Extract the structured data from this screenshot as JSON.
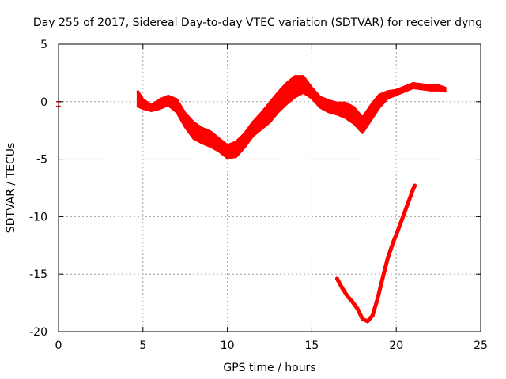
{
  "chart_data": {
    "type": "line",
    "title": "Day 255 of 2017, Sidereal Day-to-day VTEC variation (SDTVAR) for receiver dyng",
    "xlabel": "GPS time / hours",
    "ylabel": "SDTVAR / TECUs",
    "xlim": [
      0,
      25
    ],
    "ylim": [
      -20,
      5
    ],
    "xticks": [
      0,
      5,
      10,
      15,
      20,
      25
    ],
    "yticks": [
      5,
      0,
      -5,
      -10,
      -15,
      -20
    ],
    "xtick_labels": [
      "0",
      "5",
      "10",
      "15",
      "20",
      "25"
    ],
    "ytick_labels": [
      "5",
      "0",
      "-5",
      "-10",
      "-15",
      "-20"
    ],
    "grid": true,
    "color": "#ff0000",
    "series": [
      {
        "name": "band-upper",
        "x": [
          4.7,
          5.0,
          5.5,
          6.0,
          6.5,
          7.0,
          7.5,
          8.0,
          8.5,
          9.0,
          9.5,
          10.0,
          10.5,
          11.0,
          11.5,
          12.0,
          12.5,
          13.0,
          13.5,
          14.0,
          14.5,
          15.0,
          15.5,
          16.0,
          16.5,
          17.0,
          17.5,
          18.0,
          18.5,
          19.0,
          19.5,
          20.0,
          20.5,
          21.0,
          21.5,
          22.0,
          22.5,
          22.9
        ],
        "y": [
          0.9,
          0.2,
          -0.3,
          0.2,
          0.5,
          0.2,
          -1.0,
          -1.8,
          -2.3,
          -2.6,
          -3.2,
          -3.8,
          -3.5,
          -2.8,
          -1.8,
          -1.0,
          -0.1,
          0.8,
          1.6,
          2.2,
          2.2,
          1.2,
          0.4,
          0.1,
          -0.1,
          -0.1,
          -0.5,
          -1.4,
          -0.3,
          0.6,
          0.9,
          1.0,
          1.3,
          1.6,
          1.5,
          1.4,
          1.4,
          1.2
        ]
      },
      {
        "name": "band-lower",
        "x": [
          4.7,
          5.0,
          5.5,
          6.0,
          6.5,
          7.0,
          7.5,
          8.0,
          8.5,
          9.0,
          9.5,
          10.0,
          10.5,
          11.0,
          11.5,
          12.0,
          12.5,
          13.0,
          13.5,
          14.0,
          14.5,
          15.0,
          15.5,
          16.0,
          16.5,
          17.0,
          17.5,
          18.0,
          18.5,
          19.0,
          19.5,
          20.0,
          20.5,
          21.0,
          21.5,
          22.0,
          22.5,
          22.9
        ],
        "y": [
          -0.4,
          -0.6,
          -0.8,
          -0.6,
          -0.3,
          -0.9,
          -2.2,
          -3.2,
          -3.6,
          -3.9,
          -4.3,
          -4.9,
          -4.8,
          -4.0,
          -3.0,
          -2.4,
          -1.8,
          -0.9,
          -0.2,
          0.4,
          0.8,
          0.3,
          -0.5,
          -0.9,
          -1.1,
          -1.4,
          -1.9,
          -2.7,
          -1.6,
          -0.5,
          0.3,
          0.6,
          0.9,
          1.2,
          1.1,
          1.0,
          1.0,
          0.9
        ]
      },
      {
        "name": "dip-segment",
        "x": [
          16.5,
          16.8,
          17.1,
          17.4,
          17.7,
          18.0,
          18.3,
          18.6,
          18.9,
          19.2,
          19.5,
          19.8,
          20.1,
          20.4,
          20.7,
          21.0,
          21.1
        ],
        "y": [
          -15.4,
          -16.2,
          -16.9,
          -17.4,
          -18.0,
          -18.9,
          -19.1,
          -18.6,
          -17.1,
          -15.3,
          -13.6,
          -12.3,
          -11.2,
          -10.0,
          -8.8,
          -7.6,
          -7.3
        ]
      },
      {
        "name": "marker-at-zero",
        "x": [
          0.0,
          0.0
        ],
        "y": [
          0.0,
          -0.4
        ]
      }
    ]
  }
}
